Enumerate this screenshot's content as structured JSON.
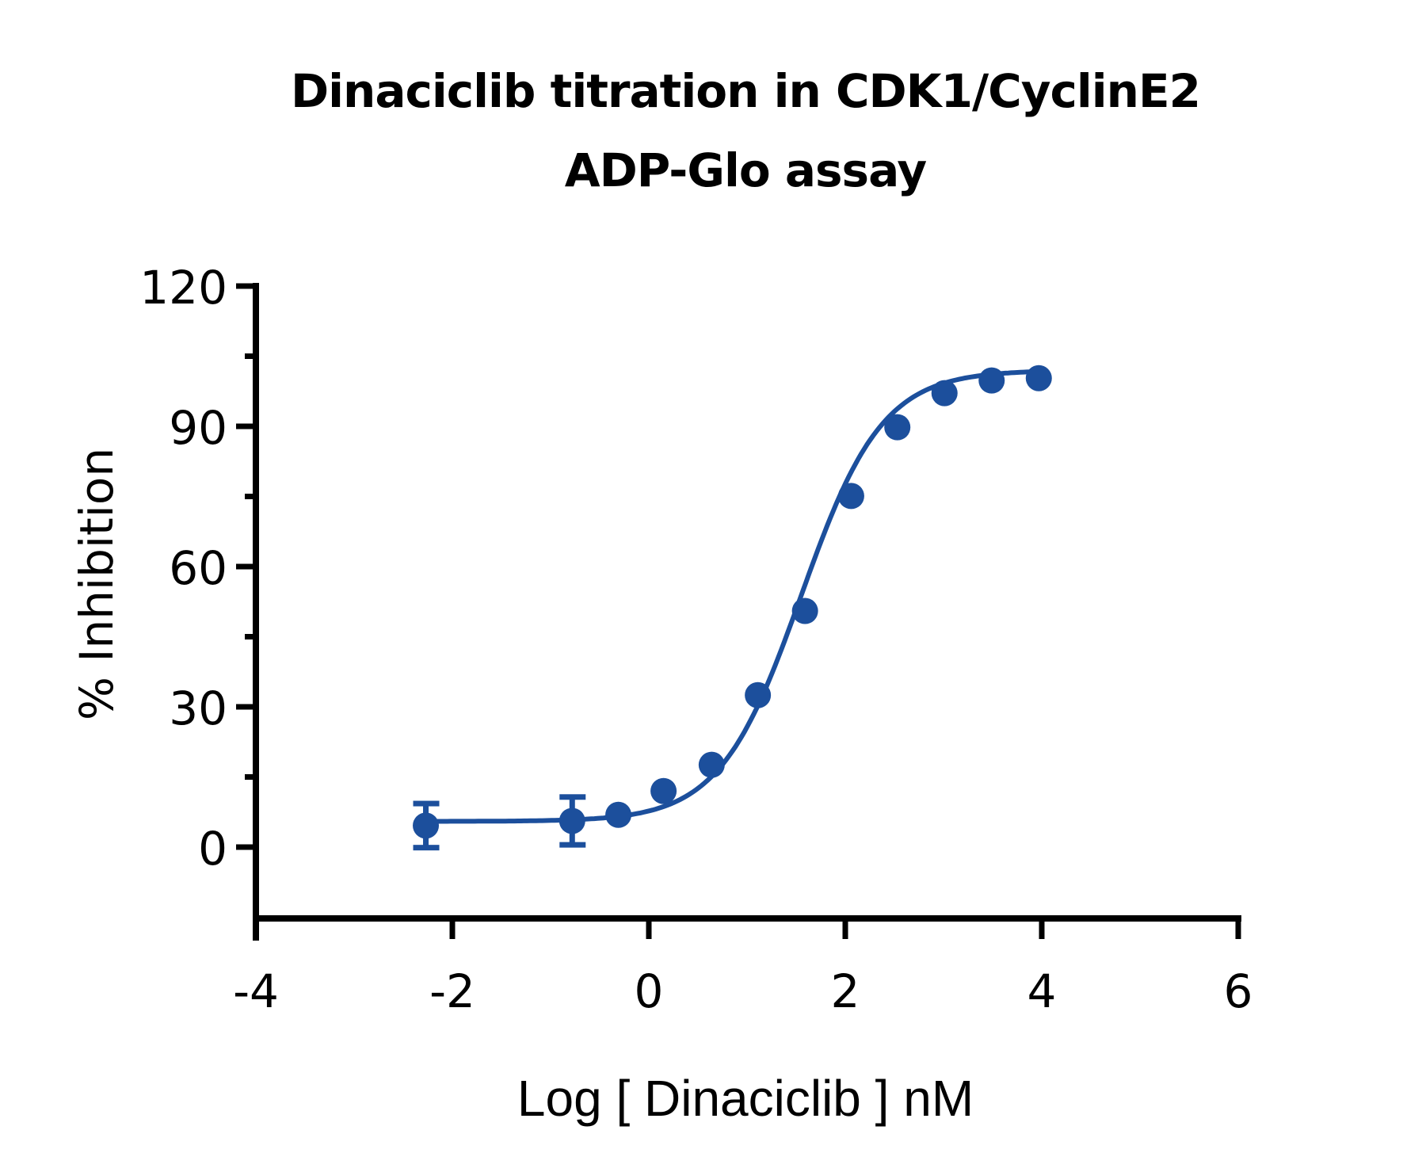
{
  "chart_data": {
    "type": "scatter",
    "title": "Dinaciclib titration in CDK1/CyclinE2",
    "subtitle": "ADP-Glo assay",
    "title_lines": [
      "Dinaciclib titration in CDK1/CyclinE2",
      "ADP-Glo assay"
    ],
    "xlabel": "Log [ Dinaciclib ] nM",
    "ylabel": "% Inhibition",
    "xlim": [
      -4,
      6
    ],
    "ylim": [
      -13,
      120
    ],
    "xticks": [
      -4,
      -2,
      0,
      2,
      4,
      6
    ],
    "xtick_labels": [
      "-4",
      "-2",
      "0",
      "2",
      "4",
      "6"
    ],
    "yticks": [
      0,
      30,
      60,
      90,
      120
    ],
    "ytick_labels": [
      "0",
      "30",
      "60",
      "90",
      "120"
    ],
    "yminor_ticks": [
      15,
      45,
      75,
      105
    ],
    "grid": false,
    "legend": null,
    "series": [
      {
        "name": "Dinaciclib",
        "color": "#1c4f9c",
        "marker": "circle",
        "x": [
          -2.27,
          -0.78,
          -0.31,
          0.15,
          0.64,
          1.11,
          1.59,
          2.06,
          2.53,
          3.01,
          3.49,
          3.97
        ],
        "y": [
          4.6,
          5.6,
          6.9,
          12.0,
          17.6,
          32.5,
          50.5,
          75.1,
          89.8,
          97.1,
          99.8,
          100.3
        ],
        "error": [
          4.8,
          5.2,
          0,
          0,
          0,
          0,
          0,
          0,
          0,
          0,
          0,
          0
        ]
      }
    ],
    "fit": {
      "model": "4-parameter logistic (sigmoidal dose-response)",
      "bottom": 5.5,
      "top": 102,
      "logIC50": 1.55,
      "hill_slope": 1.05
    }
  }
}
